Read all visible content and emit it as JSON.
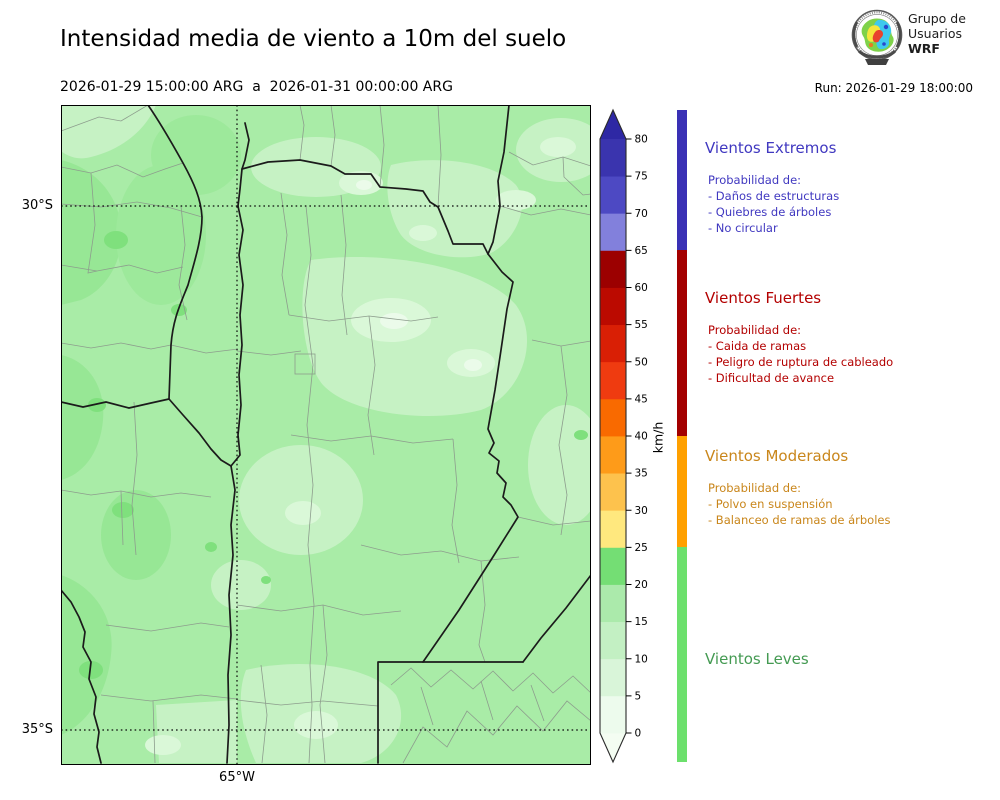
{
  "header": {
    "title": "Intensidad media de viento a 10m del suelo",
    "subtitle": "2026-01-29 15:00:00 ARG  a  2026-01-31 00:00:00 ARG",
    "run_label": "Run: 2026-01-29 18:00:00",
    "logo": {
      "line1": "Grupo de",
      "line2": "Usuarios",
      "line3": "WRF"
    }
  },
  "map": {
    "ytick_30": "30°S",
    "ytick_35": "35°S",
    "xtick_65": "65°W"
  },
  "colorbar": {
    "unit": "km/h",
    "ticks": [
      0,
      5,
      10,
      15,
      20,
      25,
      30,
      35,
      40,
      45,
      50,
      55,
      60,
      65,
      70,
      75,
      80
    ],
    "segment_colors_bottom_to_top": [
      "#edfbed",
      "#d9f5d9",
      "#c3f0c3",
      "#abeaab",
      "#74de74",
      "#ffe87e",
      "#fdc24d",
      "#fe9b19",
      "#f96a00",
      "#ef3b10",
      "#d91f05",
      "#bb0a00",
      "#9c0000",
      "#8280dc",
      "#4d49c3",
      "#3a34ae"
    ],
    "arrow_top_color": "#2e28a4",
    "arrow_bottom_color": "#f4fdf2",
    "outline_color": "#2b2b2b"
  },
  "categories": [
    {
      "name": "Vientos Extremos",
      "text_color": "#4038c0",
      "strip_color": "#3a31b5",
      "prob_label": "Probabilidad de:",
      "items": [
        "- Daños de estructuras",
        "- Quiebres de árboles",
        "- No circular"
      ]
    },
    {
      "name": "Vientos Fuertes",
      "text_color": "#b30000",
      "strip_color": "#a30000",
      "prob_label": "Probabilidad de:",
      "items": [
        "- Caida de ramas",
        "- Peligro de ruptura de cableado",
        "- Dificultad de avance"
      ]
    },
    {
      "name": "Vientos Moderados",
      "text_color": "#c9861b",
      "strip_color": "#ffa000",
      "prob_label": "Probabilidad de:",
      "items": [
        "- Polvo en suspensión",
        "- Balanceo de ramas de árboles"
      ]
    },
    {
      "name": "Vientos Leves",
      "text_color": "#449a52",
      "strip_color": "#6ce06c",
      "prob_label": "",
      "items": []
    }
  ]
}
